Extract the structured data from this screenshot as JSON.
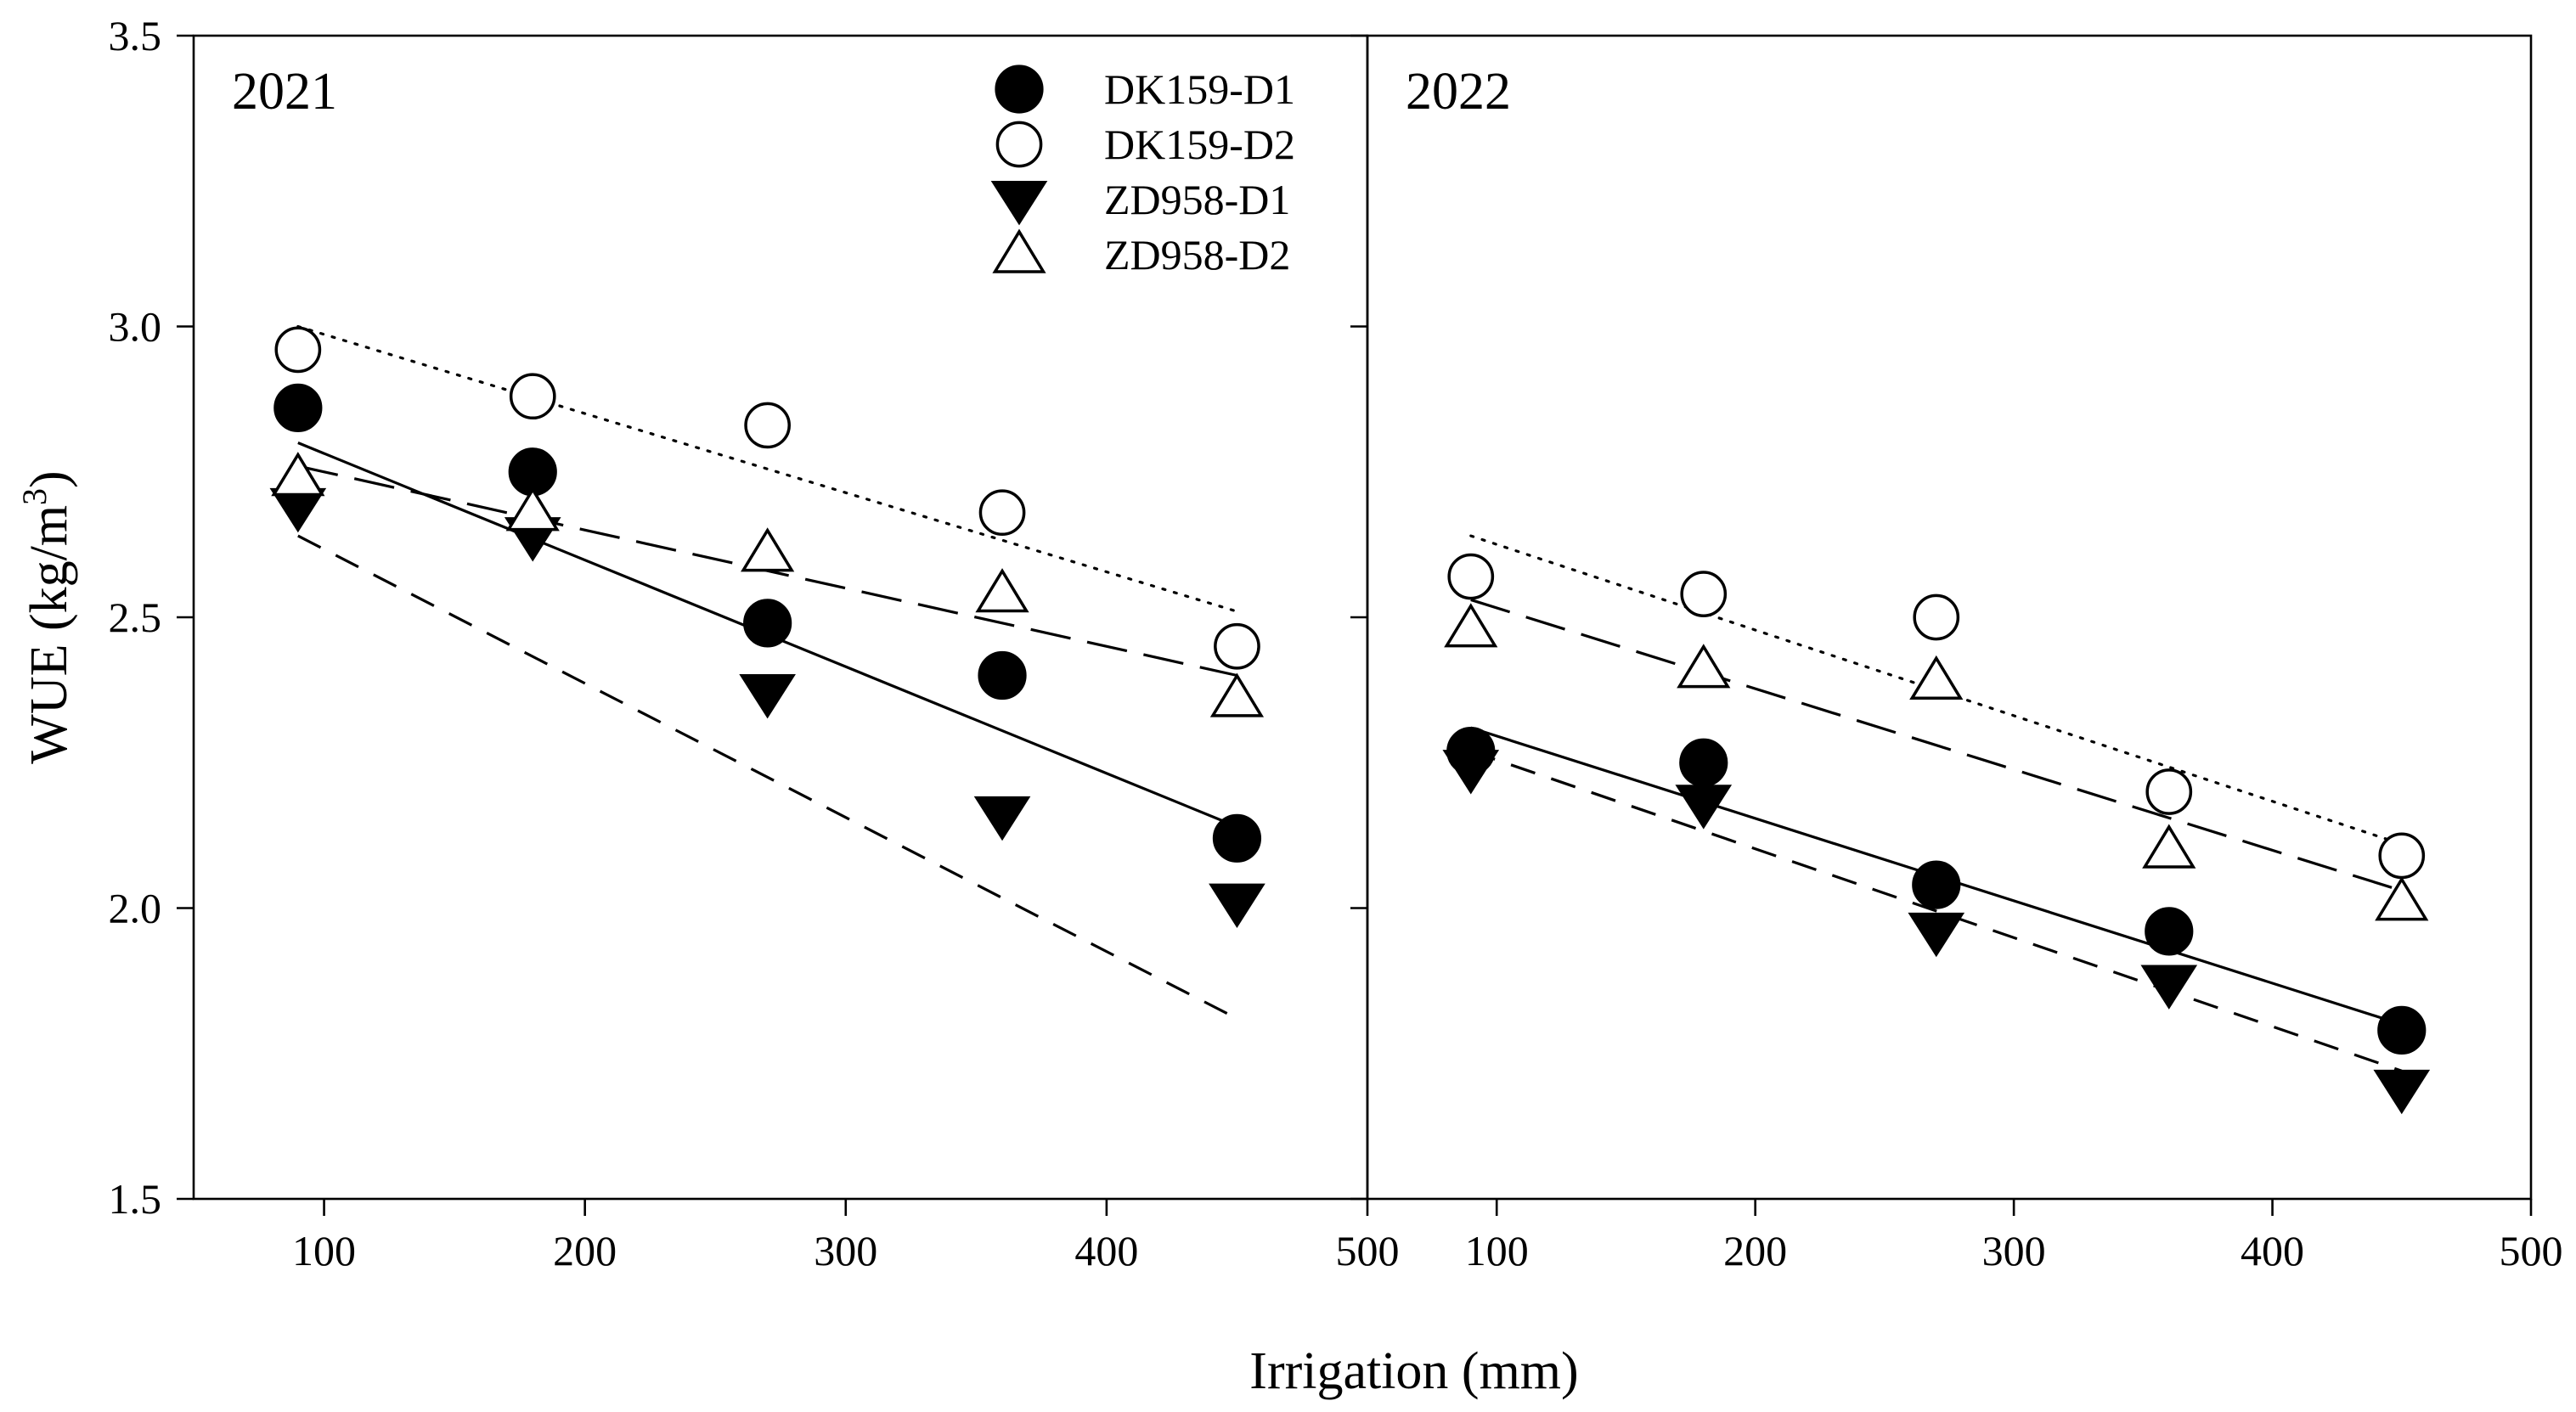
{
  "chart_data": {
    "type": "scatter",
    "ylabel_main": "WUE (kg/m",
    "ylabel_sup": "3",
    "ylabel_close": ")",
    "xlabel": "Irrigation (mm)",
    "xlim": [
      50,
      500
    ],
    "ylim": [
      1.5,
      3.5
    ],
    "xticks": [
      100,
      200,
      300,
      400,
      500
    ],
    "xtick_labels": [
      "100",
      "200",
      "300",
      "400",
      "500"
    ],
    "yticks": [
      1.5,
      2.0,
      2.5,
      3.0,
      3.5
    ],
    "ytick_labels": [
      "1.5",
      "2.0",
      "2.5",
      "3.0",
      "3.5"
    ],
    "legend_position": "top-right of left panel",
    "legend": [
      {
        "name": "DK159-D1",
        "marker": "filled-circle"
      },
      {
        "name": "DK159-D2",
        "marker": "open-circle"
      },
      {
        "name": "ZD958-D1",
        "marker": "filled-triangle-down"
      },
      {
        "name": "ZD958-D2",
        "marker": "open-triangle-up"
      }
    ],
    "panels": [
      {
        "year": "2021",
        "x": [
          90,
          180,
          270,
          360,
          450
        ],
        "series": [
          {
            "name": "DK159-D1",
            "marker": "filled-circle",
            "line": "solid",
            "values": [
              2.86,
              2.75,
              2.49,
              2.4,
              2.12
            ],
            "fit": [
              2.8,
              2.14
            ]
          },
          {
            "name": "DK159-D2",
            "marker": "open-circle",
            "line": "dotted",
            "values": [
              2.96,
              2.88,
              2.83,
              2.68,
              2.45
            ],
            "fit": [
              3.0,
              2.51
            ]
          },
          {
            "name": "ZD958-D1",
            "marker": "filled-triangle-down",
            "line": "dashed",
            "values": [
              2.69,
              2.64,
              2.37,
              2.16,
              2.01
            ],
            "fit": [
              2.64,
              1.81
            ]
          },
          {
            "name": "ZD958-D2",
            "marker": "open-triangle-up",
            "line": "long-dash",
            "values": [
              2.74,
              2.68,
              2.61,
              2.54,
              2.36
            ],
            "fit": [
              2.76,
              2.4
            ]
          }
        ]
      },
      {
        "year": "2022",
        "x": [
          90,
          180,
          270,
          360,
          450
        ],
        "series": [
          {
            "name": "DK159-D1",
            "marker": "filled-circle",
            "line": "solid",
            "values": [
              2.27,
              2.25,
              2.04,
              1.96,
              1.79
            ],
            "fit": [
              2.31,
              1.8
            ]
          },
          {
            "name": "DK159-D2",
            "marker": "open-circle",
            "line": "dotted",
            "values": [
              2.57,
              2.54,
              2.5,
              2.2,
              2.09
            ],
            "fit": [
              2.64,
              2.11
            ]
          },
          {
            "name": "ZD958-D1",
            "marker": "filled-triangle-down",
            "line": "dashed",
            "values": [
              2.24,
              2.18,
              1.96,
              1.87,
              1.69
            ],
            "fit": [
              2.27,
              1.72
            ]
          },
          {
            "name": "ZD958-D2",
            "marker": "open-triangle-up",
            "line": "long-dash",
            "values": [
              2.48,
              2.41,
              2.39,
              2.1,
              2.01
            ],
            "fit": [
              2.53,
              2.03
            ]
          }
        ]
      }
    ]
  }
}
